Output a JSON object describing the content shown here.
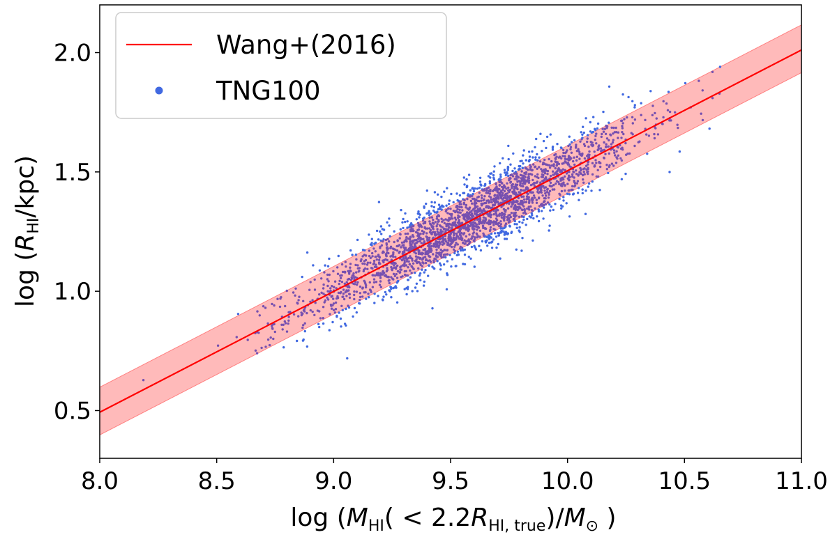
{
  "chart_data": {
    "type": "scatter",
    "title": "",
    "xlabel": {
      "prefix": "log (",
      "M": "M",
      "M_sub": "HI",
      "mid": "( < 2.2",
      "R": "R",
      "R_sub": "HI, true",
      "close": ")/",
      "Msun": "M",
      "sun_sub": "⊙",
      "end": " )"
    },
    "ylabel": {
      "prefix": "log (",
      "R": "R",
      "R_sub": "HI",
      "suffix": "/kpc)"
    },
    "xlim": [
      8.0,
      11.0
    ],
    "ylim": [
      0.3,
      2.2
    ],
    "xticks": [
      8.0,
      8.5,
      9.0,
      9.5,
      10.0,
      10.5,
      11.0
    ],
    "xtick_labels": [
      "8.0",
      "8.5",
      "9.0",
      "9.5",
      "10.0",
      "10.5",
      "11.0"
    ],
    "yticks": [
      0.5,
      1.0,
      1.5,
      2.0
    ],
    "ytick_labels": [
      "0.5",
      "1.0",
      "1.5",
      "2.0"
    ],
    "legend": {
      "position": "top-left",
      "entries": [
        {
          "label": "Wang+(2016)",
          "kind": "line",
          "color": "#ff0000"
        },
        {
          "label": "TNG100",
          "kind": "marker",
          "color": "#4169e1"
        }
      ]
    },
    "series": [
      {
        "name": "Wang+(2016)",
        "kind": "line",
        "color": "#ff0000",
        "slope": 0.506,
        "intercept": -3.55,
        "x": [
          8.0,
          11.0
        ],
        "y": [
          0.493,
          2.011
        ],
        "band_halfwidth": 0.1,
        "band_color": "#ffb3b3"
      },
      {
        "name": "TNG100",
        "kind": "scatter",
        "color": "#4169e1",
        "overlap_color": "#7650b0",
        "n_points": 2600,
        "x_center": 9.6,
        "x_spread": 0.35,
        "x_range": [
          8.12,
          10.67
        ],
        "y_scatter": 0.075,
        "seed": 12345
      }
    ]
  }
}
